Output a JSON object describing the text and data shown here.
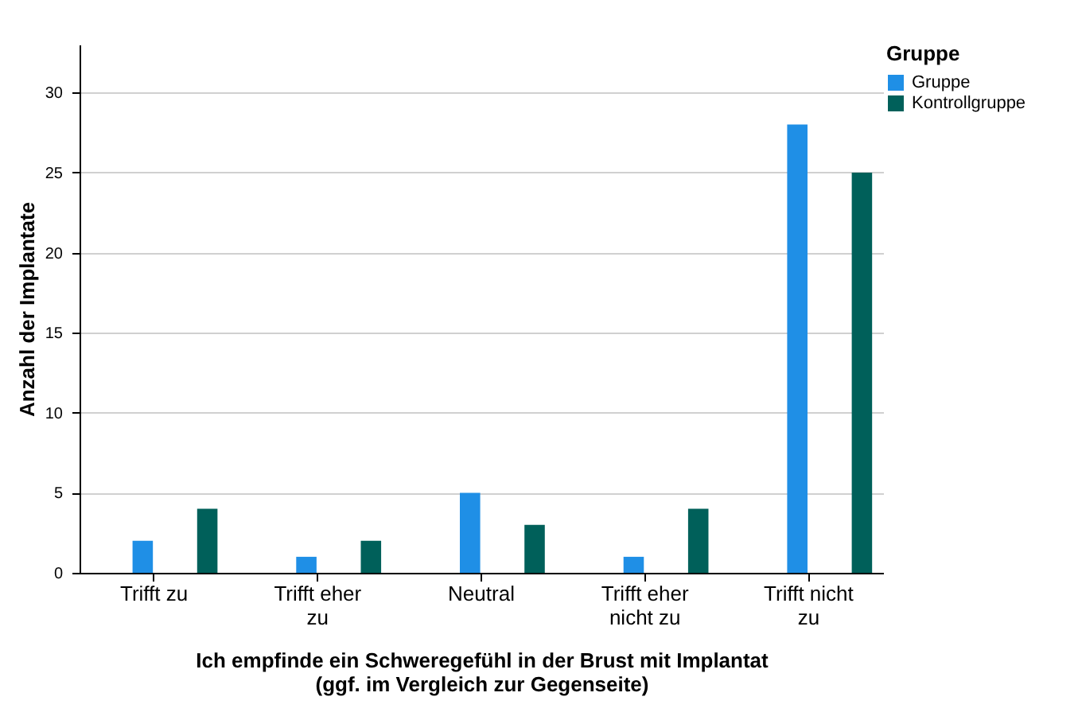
{
  "chart_data": {
    "type": "bar",
    "xlabel": "Ich empfinde ein Schweregefühl in der Brust mit Implantat\n(ggf. im Vergleich zur Gegenseite)",
    "ylabel": "Anzahl der Implantate",
    "legend_title": "Gruppe",
    "categories": [
      "Trifft zu",
      "Trifft eher zu",
      "Neutral",
      "Trifft eher nicht zu",
      "Trifft nicht zu"
    ],
    "series": [
      {
        "name": "Gruppe",
        "color": "#1f8fe6",
        "values": [
          2,
          1,
          5,
          1,
          28
        ]
      },
      {
        "name": "Kontrollgruppe",
        "color": "#00605a",
        "values": [
          4,
          2,
          3,
          4,
          25
        ]
      }
    ],
    "ylim": [
      0,
      33
    ],
    "yticks": [
      0,
      5,
      10,
      15,
      20,
      25,
      30
    ],
    "grid": "y",
    "legend": "top right"
  }
}
